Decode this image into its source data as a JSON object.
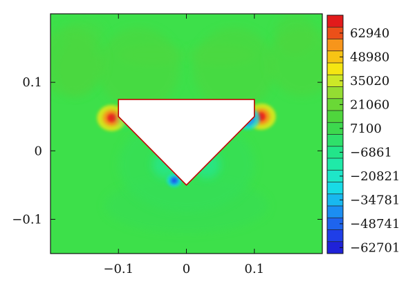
{
  "chart_data": {
    "type": "heatmap",
    "title": "",
    "xlabel": "",
    "ylabel": "",
    "xlim": [
      -0.2,
      0.2
    ],
    "ylim": [
      -0.15,
      0.2
    ],
    "x_ticks": [
      {
        "value": -0.1,
        "label": "−0.1"
      },
      {
        "value": 0,
        "label": "0"
      },
      {
        "value": 0.1,
        "label": "0.1"
      }
    ],
    "y_ticks": [
      {
        "value": 0.1,
        "label": "0.1"
      },
      {
        "value": 0,
        "label": "0"
      },
      {
        "value": -0.1,
        "label": "−0.1"
      }
    ],
    "field_background_value": 0,
    "obstacle": {
      "shape": "pentagon",
      "vertices": [
        [
          -0.1,
          0.075
        ],
        [
          0.1,
          0.075
        ],
        [
          0.1,
          0.05
        ],
        [
          0.0,
          -0.05
        ],
        [
          -0.1,
          0.05
        ]
      ],
      "fill": "#ffffff",
      "edge_color": "#c00000"
    },
    "hotspots": [
      {
        "x": -0.11,
        "y": 0.048,
        "value": 62940,
        "extent": 0.012
      },
      {
        "x": 0.11,
        "y": 0.05,
        "value": 62940,
        "extent": 0.012
      },
      {
        "x": -0.018,
        "y": -0.043,
        "value": -62701,
        "extent": 0.006
      },
      {
        "x": 0.09,
        "y": 0.047,
        "value": -34781,
        "extent": 0.01
      },
      {
        "x": -0.09,
        "y": 0.047,
        "value": -20821,
        "extent": 0.01
      },
      {
        "x": -0.03,
        "y": -0.02,
        "value": -20821,
        "extent": 0.02
      },
      {
        "x": 0.03,
        "y": -0.02,
        "value": -20821,
        "extent": 0.02
      },
      {
        "x": -0.07,
        "y": 0.12,
        "value": 7100,
        "extent": 0.06
      },
      {
        "x": 0.07,
        "y": 0.12,
        "value": 7100,
        "extent": 0.06
      },
      {
        "x": 0.17,
        "y": 0.13,
        "value": 7100,
        "extent": 0.05
      },
      {
        "x": -0.17,
        "y": 0.13,
        "value": 7100,
        "extent": 0.05
      }
    ],
    "colorbar": {
      "levels": [
        {
          "label": "62940",
          "value": 62940,
          "color": "#e8281e"
        },
        {
          "label": "48980",
          "value": 48980,
          "color": "#f7951b"
        },
        {
          "label": "35020",
          "value": 35020,
          "color": "#f5dd12"
        },
        {
          "label": "21060",
          "value": 21060,
          "color": "#a6e23a"
        },
        {
          "label": "7100",
          "value": 7100,
          "color": "#4fd63d"
        },
        {
          "label": "−6861",
          "value": -6861,
          "color": "#2fe06a"
        },
        {
          "label": "−20821",
          "value": -20821,
          "color": "#1feaa8"
        },
        {
          "label": "−34781",
          "value": -34781,
          "color": "#18dbe6"
        },
        {
          "label": "−48741",
          "value": -48741,
          "color": "#1b8ef2"
        },
        {
          "label": "−62701",
          "value": -62701,
          "color": "#1f3ee8"
        }
      ],
      "band_colors": [
        "#e21b1b",
        "#ec5019",
        "#f7951b",
        "#f7c414",
        "#f5e612",
        "#cce827",
        "#94dd32",
        "#6ad836",
        "#4fd63d",
        "#3dd94e",
        "#2fe06a",
        "#22e58a",
        "#1feaa8",
        "#1ee6c8",
        "#18dbe6",
        "#18b8ef",
        "#1b8ef2",
        "#1e64ee",
        "#1f3ee8",
        "#1f22d8"
      ]
    },
    "field_color": "#3de04a"
  }
}
